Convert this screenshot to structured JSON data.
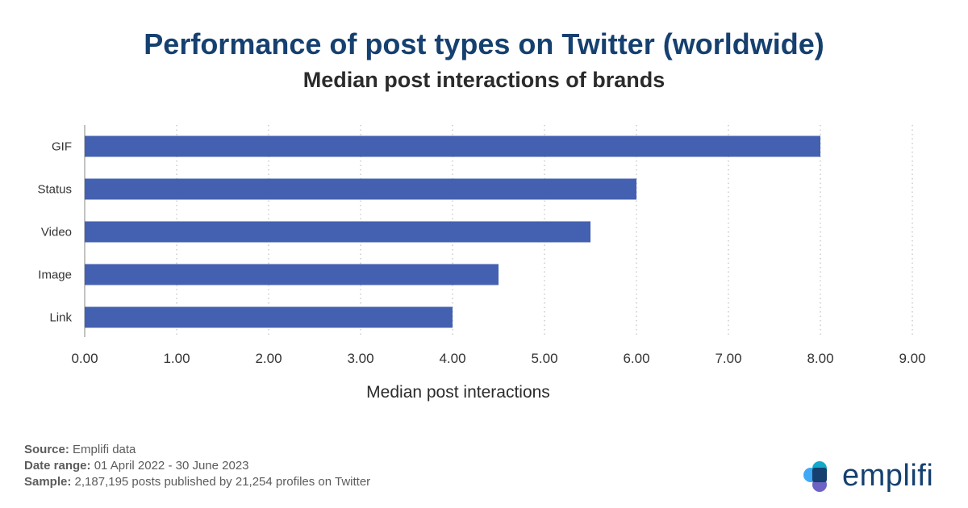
{
  "chart_data": {
    "type": "bar",
    "orientation": "horizontal",
    "title": "Performance of post types on Twitter (worldwide)",
    "subtitle": "Median post interactions of brands",
    "xlabel": "Median post interactions",
    "ylabel": "",
    "categories": [
      "GIF",
      "Status",
      "Video",
      "Image",
      "Link"
    ],
    "values": [
      8.0,
      6.0,
      5.5,
      4.5,
      4.0
    ],
    "xlim": [
      0,
      9
    ],
    "x_ticks": [
      "0.00",
      "1.00",
      "2.00",
      "3.00",
      "4.00",
      "5.00",
      "6.00",
      "7.00",
      "8.00",
      "9.00"
    ],
    "grid": "vertical dotted",
    "legend": "none",
    "bar_color": "#4460b0"
  },
  "footer": {
    "source_label": "Source:",
    "source_value": "Emplifi data",
    "date_label": "Date range:",
    "date_value": "01 April 2022 - 30 June 2023",
    "sample_label": "Sample:",
    "sample_value": "2,187,195 posts published by 21,254 profiles on Twitter"
  },
  "logo": {
    "text": "emplifi",
    "icon": "emplifi-logo-icon"
  }
}
